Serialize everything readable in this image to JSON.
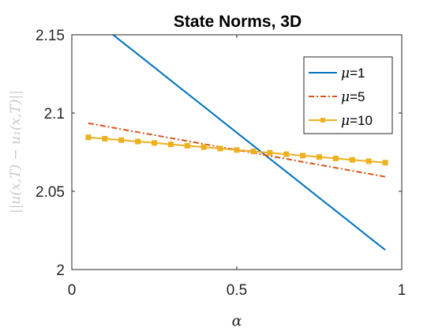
{
  "chart_data": {
    "type": "line",
    "title": "State Norms, 3D",
    "xlabel": "α",
    "ylabel": "||u(x,T) − u₁(x,T)||",
    "xlim": [
      0,
      1
    ],
    "ylim": [
      2,
      2.15
    ],
    "xticks": [
      "0",
      "0.5",
      "1"
    ],
    "yticks": [
      "2",
      "2.05",
      "2.1",
      "2.15"
    ],
    "grid": false,
    "legend_location": "top-right",
    "x": [
      0.05,
      0.1,
      0.15,
      0.2,
      0.25,
      0.3,
      0.35,
      0.4,
      0.45,
      0.5,
      0.55,
      0.6,
      0.65,
      0.7,
      0.75,
      0.8,
      0.85,
      0.9,
      0.95
    ],
    "series": [
      {
        "legend_mu": "μ",
        "legend_value": "=1",
        "color": "#0072BD",
        "style": "solid",
        "marker": "none",
        "values": [
          2.1625,
          2.1542,
          2.1458,
          2.1375,
          2.1292,
          2.1208,
          2.1125,
          2.1042,
          2.0958,
          2.0875,
          2.0792,
          2.0708,
          2.0625,
          2.0542,
          2.0458,
          2.0375,
          2.0292,
          2.0208,
          2.0125
        ]
      },
      {
        "legend_mu": "μ",
        "legend_value": "=5",
        "color": "#D95319",
        "style": "dashdot",
        "marker": "none",
        "values": [
          2.0935,
          2.0916,
          2.0897,
          2.0878,
          2.0859,
          2.084,
          2.0821,
          2.0802,
          2.0783,
          2.0764,
          2.0745,
          2.0726,
          2.0707,
          2.0688,
          2.0669,
          2.065,
          2.0631,
          2.0612,
          2.0593
        ]
      },
      {
        "legend_mu": "μ",
        "legend_value": "=10",
        "color": "#EDB120",
        "style": "solid",
        "marker": "square",
        "values": [
          2.0845,
          2.0836,
          2.0827,
          2.0818,
          2.0809,
          2.08,
          2.0791,
          2.0782,
          2.0773,
          2.0764,
          2.0755,
          2.0746,
          2.0737,
          2.0728,
          2.0719,
          2.071,
          2.0701,
          2.0692,
          2.0683
        ]
      }
    ]
  }
}
